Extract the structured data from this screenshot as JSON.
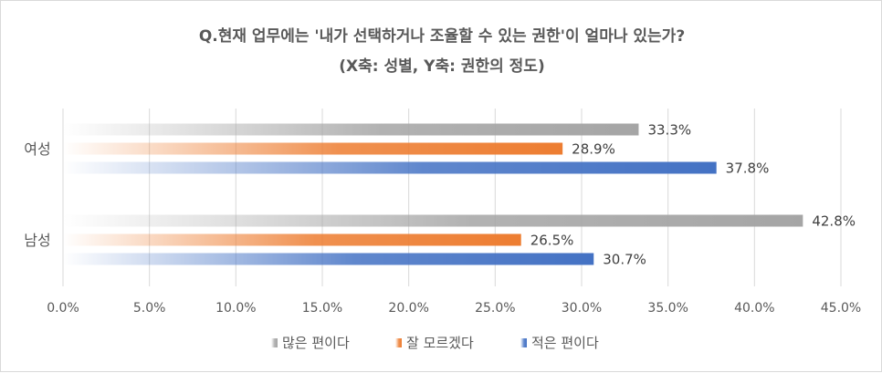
{
  "chart_data": {
    "type": "bar",
    "orientation": "horizontal",
    "title": "Q.현재 업무에는 '내가 선택하거나 조율할 수 있는 권한'이 얼마나 있는가?",
    "subtitle": "(X축: 성별, Y축: 권한의 정도)",
    "categories": [
      "여성",
      "남성"
    ],
    "series": [
      {
        "name": "많은 편이다",
        "values": [
          33.3,
          42.8
        ],
        "labels": [
          "33.3%",
          "42.8%"
        ],
        "color": "#a5a5a5"
      },
      {
        "name": "잘 모르겠다",
        "values": [
          28.9,
          26.5
        ],
        "labels": [
          "28.9%",
          "26.5%"
        ],
        "color": "#ed7d31"
      },
      {
        "name": "적은 편이다",
        "values": [
          37.8,
          30.7
        ],
        "labels": [
          "37.8%",
          "30.7%"
        ],
        "color": "#4472c4"
      }
    ],
    "x_ticks": [
      "0.0%",
      "5.0%",
      "10.0%",
      "15.0%",
      "20.0%",
      "25.0%",
      "30.0%",
      "35.0%",
      "40.0%",
      "45.0%"
    ],
    "xlim": [
      0,
      45
    ],
    "grid": true,
    "legend_position": "bottom",
    "bar_fill": "gradient"
  }
}
